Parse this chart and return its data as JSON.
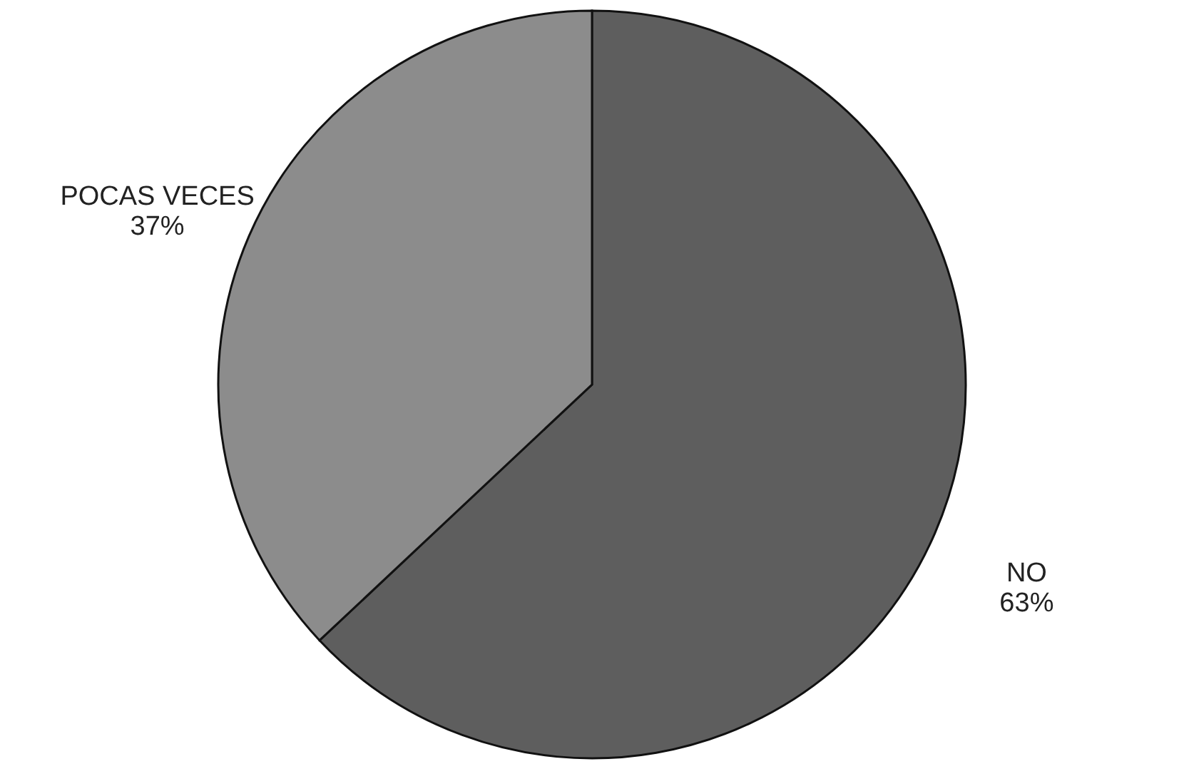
{
  "chart_data": {
    "type": "pie",
    "categories": [
      "NO",
      "POCAS VECES"
    ],
    "values": [
      63,
      37
    ],
    "colors": [
      "#5e5e5e",
      "#8c8c8c"
    ],
    "value_labels": [
      "63%",
      "37%"
    ],
    "legend": false
  }
}
